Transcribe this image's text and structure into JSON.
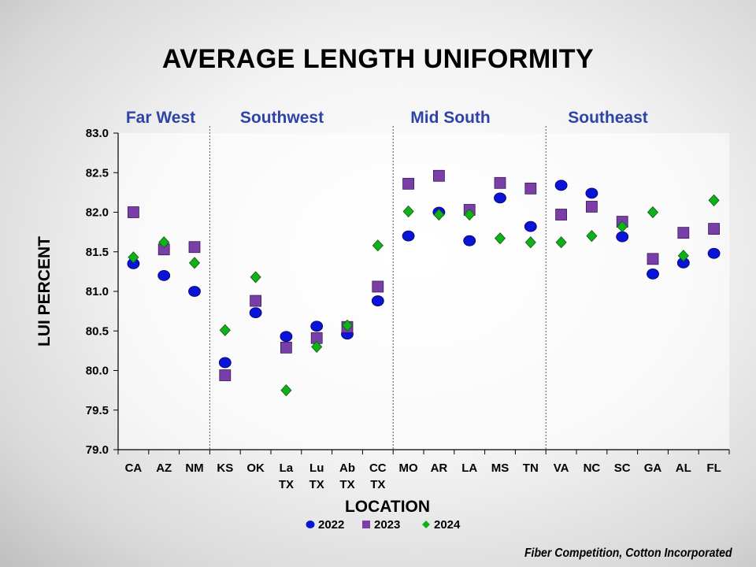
{
  "chart_data": {
    "type": "scatter",
    "title": "AVERAGE LENGTH UNIFORMITY",
    "xlabel": "LOCATION",
    "ylabel": "LUI PERCENT",
    "ylim": [
      79.0,
      83.0
    ],
    "yticks": [
      "79.0",
      "79.5",
      "80.0",
      "80.5",
      "81.0",
      "81.5",
      "82.0",
      "82.5",
      "83.0"
    ],
    "categories": [
      [
        "CA"
      ],
      [
        "AZ"
      ],
      [
        "NM"
      ],
      [
        "KS"
      ],
      [
        "OK"
      ],
      [
        "La",
        "TX"
      ],
      [
        "Lu",
        "TX"
      ],
      [
        "Ab",
        "TX"
      ],
      [
        "CC",
        "TX"
      ],
      [
        "MO"
      ],
      [
        "AR"
      ],
      [
        "LA"
      ],
      [
        "MS"
      ],
      [
        "TN"
      ],
      [
        "VA"
      ],
      [
        "NC"
      ],
      [
        "SC"
      ],
      [
        "GA"
      ],
      [
        "AL"
      ],
      [
        "FL"
      ]
    ],
    "regions": [
      {
        "name": "Far West",
        "start": 0,
        "end": 2
      },
      {
        "name": "Southwest",
        "start": 3,
        "end": 8
      },
      {
        "name": "Mid South",
        "start": 9,
        "end": 13
      },
      {
        "name": "Southeast",
        "start": 14,
        "end": 19
      }
    ],
    "series": [
      {
        "name": "2022",
        "marker": "circle",
        "color": "#0a14d6",
        "values": [
          81.35,
          81.2,
          81.0,
          80.1,
          80.73,
          80.43,
          80.56,
          80.46,
          80.88,
          81.7,
          82.0,
          81.64,
          82.18,
          81.82,
          82.34,
          82.24,
          81.69,
          81.22,
          81.36,
          81.48
        ]
      },
      {
        "name": "2023",
        "marker": "square",
        "color": "#7a3fa6",
        "values": [
          82.0,
          81.53,
          81.56,
          79.94,
          80.88,
          80.29,
          80.41,
          80.55,
          81.06,
          82.36,
          82.46,
          82.03,
          82.37,
          82.3,
          81.97,
          82.07,
          81.88,
          81.41,
          81.74,
          81.79
        ]
      },
      {
        "name": "2024",
        "marker": "diamond",
        "color": "#10b01a",
        "values": [
          81.43,
          81.62,
          81.36,
          80.51,
          81.18,
          79.75,
          80.3,
          80.57,
          81.58,
          82.01,
          81.97,
          81.97,
          81.67,
          81.62,
          81.62,
          81.7,
          81.82,
          82.0,
          81.45,
          82.15
        ]
      }
    ],
    "legend": {
      "position": "bottom",
      "entries": [
        "2022",
        "2023",
        "2024"
      ]
    }
  },
  "footer": {
    "credit": "Fiber Competition, Cotton Incorporated"
  }
}
